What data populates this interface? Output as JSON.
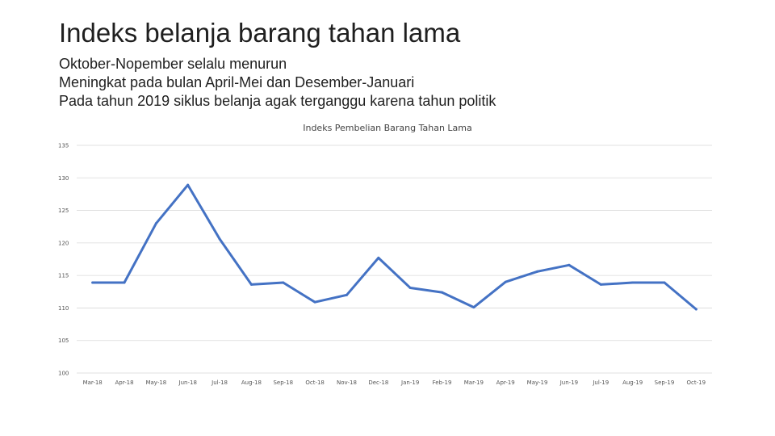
{
  "slide": {
    "title": "Indeks belanja barang tahan lama",
    "bullets": [
      "Oktober-Nopember selalu menurun",
      "Meningkat pada bulan April-Mei dan Desember-Januari",
      "Pada tahun 2019 siklus belanja agak terganggu karena tahun politik"
    ]
  },
  "colors": {
    "line": "#4472c4",
    "grid": "#d9d9d9"
  },
  "chart_data": {
    "type": "line",
    "title": "Indeks Pembelian Barang Tahan Lama",
    "xlabel": "",
    "ylabel": "",
    "grid": true,
    "ylim": [
      100,
      135
    ],
    "yticks": [
      100,
      105,
      110,
      115,
      120,
      125,
      130,
      135
    ],
    "categories": [
      "Mar-18",
      "Apr-18",
      "May-18",
      "Jun-18",
      "Jul-18",
      "Aug-18",
      "Sep-18",
      "Oct-18",
      "Nov-18",
      "Dec-18",
      "Jan-19",
      "Feb-19",
      "Mar-19",
      "Apr-19",
      "May-19",
      "Jun-19",
      "Jul-19",
      "Aug-19",
      "Sep-19",
      "Oct-19"
    ],
    "values": [
      113.9,
      113.9,
      123.0,
      128.9,
      120.6,
      113.6,
      113.9,
      110.9,
      112.0,
      117.7,
      113.1,
      112.4,
      110.1,
      114.0,
      115.6,
      116.6,
      113.6,
      113.9,
      113.9,
      109.8
    ]
  }
}
